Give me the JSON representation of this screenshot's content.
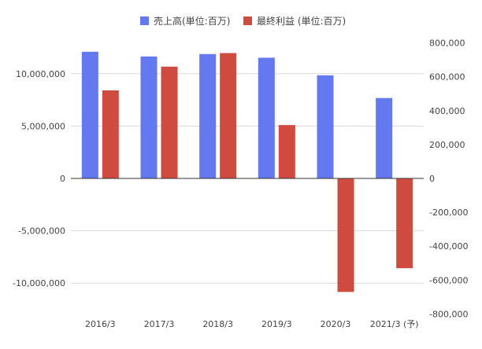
{
  "colors": {
    "grid": "#d9d9d9",
    "zero_line": "#333333",
    "axis_text": "#444444"
  },
  "chart_data": {
    "type": "bar",
    "categories": [
      "2016/3",
      "2017/3",
      "2018/3",
      "2019/3",
      "2020/3",
      "2021/3 (予)"
    ],
    "series": [
      {
        "name": "売上高(単位:百万)",
        "axis": "left",
        "color": "#6479f0",
        "values": [
          12100000,
          11650000,
          11880000,
          11530000,
          9850000,
          7680000
        ]
      },
      {
        "name": "最終利益 (単位:百万)",
        "axis": "right",
        "color": "#cf4a3f",
        "values": [
          520000,
          660000,
          740000,
          315000,
          -670000,
          -530000
        ]
      }
    ],
    "left_axis": {
      "ylim": [
        -12000000,
        12000000
      ],
      "ticks": [
        10000000,
        5000000,
        0,
        -5000000,
        -10000000
      ],
      "tick_labels": [
        "10,000,000",
        "5,000,000",
        "0",
        "-5,000,000",
        "-10,000,000"
      ]
    },
    "right_axis": {
      "ylim": [
        -800000,
        800000
      ],
      "ticks": [
        800000,
        600000,
        400000,
        200000,
        0,
        -200000,
        -400000,
        -600000,
        -800000
      ],
      "tick_labels": [
        "800,000",
        "600,000",
        "400,000",
        "200,000",
        "0",
        "-200,000",
        "-400,000",
        "-600,000",
        "-800,000"
      ]
    },
    "legend_position": "top-center",
    "grid": true
  }
}
